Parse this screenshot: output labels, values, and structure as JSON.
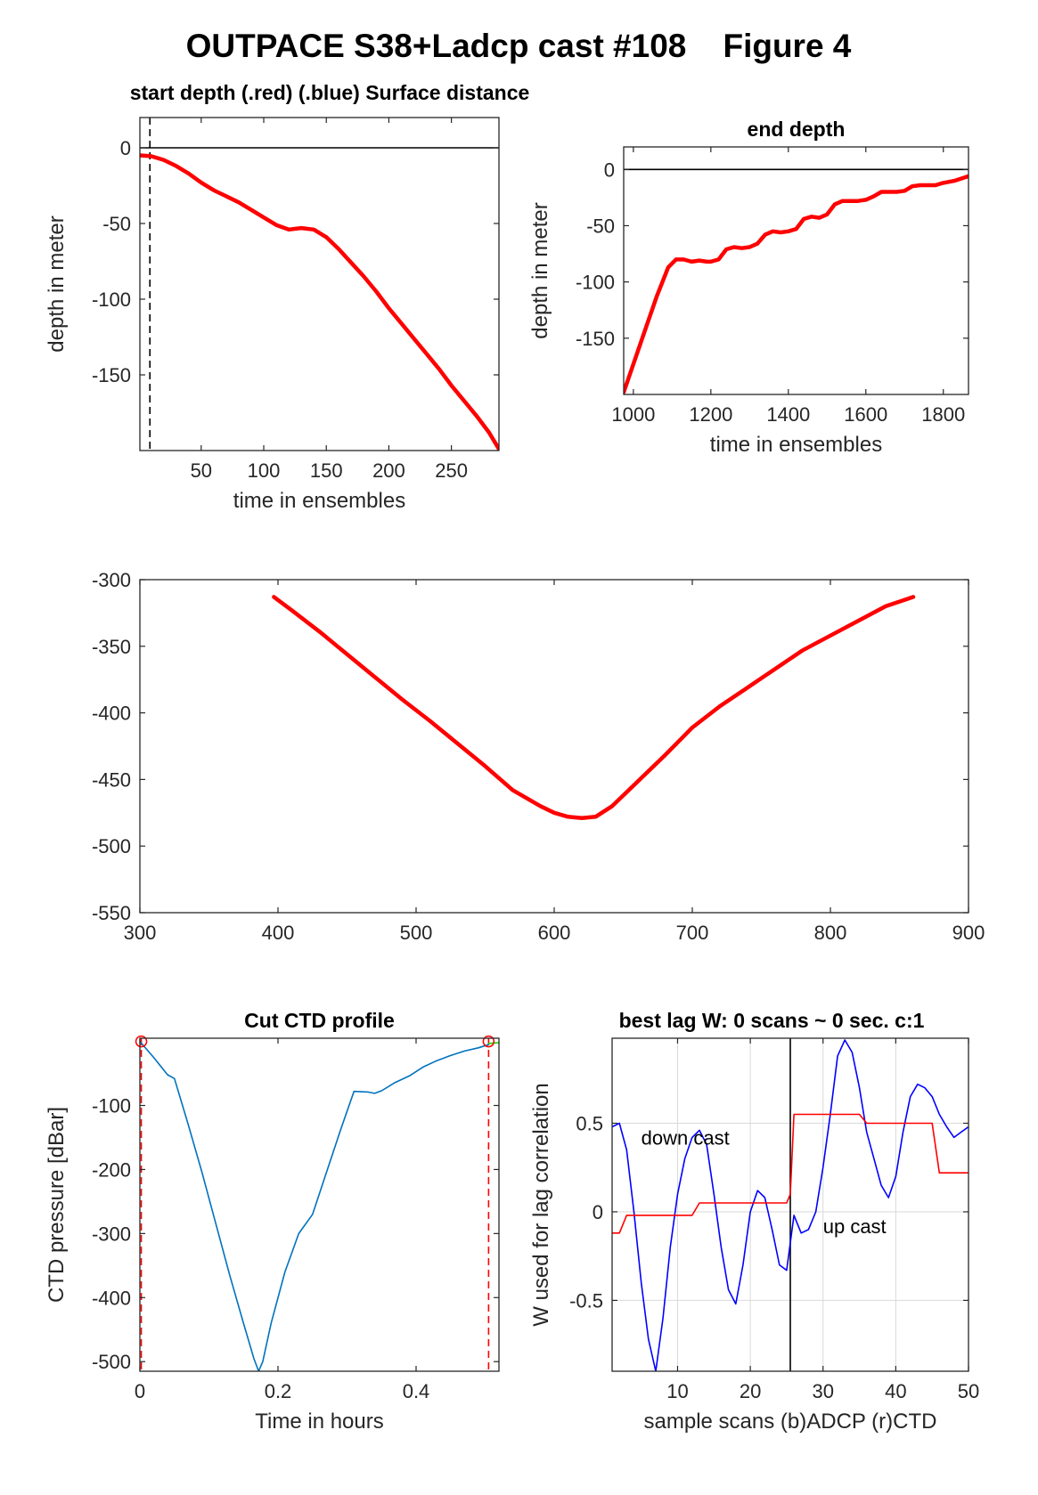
{
  "figure": {
    "title": "OUTPACE S38+Ladcp cast #108    Figure 4"
  },
  "chart_data": [
    {
      "id": "start",
      "type": "line",
      "title": "start depth (.red) (.blue) Surface distance",
      "xlabel": "time in ensembles",
      "ylabel": "depth in meter",
      "xlim": [
        1,
        288
      ],
      "ylim": [
        -200,
        20
      ],
      "xticks": [
        50,
        100,
        150,
        200,
        250
      ],
      "yticks": [
        0,
        -50,
        -100,
        -150
      ],
      "grid": false,
      "hlines": [
        {
          "y": 0,
          "style": "solid",
          "color": "#000000"
        }
      ],
      "vlines": [
        {
          "x": 9,
          "style": "dashed",
          "color": "#000000"
        }
      ],
      "series": [
        {
          "color": "#ff0000",
          "x": [
            1,
            10,
            20,
            30,
            40,
            50,
            60,
            70,
            80,
            90,
            100,
            110,
            120,
            130,
            140,
            150,
            160,
            170,
            180,
            190,
            200,
            210,
            220,
            230,
            240,
            250,
            260,
            270,
            280,
            288
          ],
          "y": [
            -5,
            -5.5,
            -8,
            -12,
            -17,
            -23,
            -28,
            -32,
            -36,
            -41,
            -46,
            -51,
            -54,
            -53,
            -54,
            -59,
            -67,
            -76,
            -85,
            -95,
            -106,
            -116,
            -126,
            -136,
            -146,
            -157,
            -167,
            -177,
            -188,
            -199
          ]
        }
      ]
    },
    {
      "id": "end",
      "type": "line",
      "title": "end depth",
      "xlabel": "time in ensembles",
      "ylabel": "depth in meter",
      "xlim": [
        975,
        1865
      ],
      "ylim": [
        -200,
        20
      ],
      "xticks": [
        1000,
        1200,
        1400,
        1600,
        1800
      ],
      "yticks": [
        0,
        -50,
        -100,
        -150
      ],
      "grid": false,
      "hlines": [
        {
          "y": 0,
          "style": "solid",
          "color": "#000000"
        }
      ],
      "vlines": [],
      "series": [
        {
          "color": "#ff0000",
          "x": [
            975,
            1000,
            1030,
            1060,
            1090,
            1110,
            1130,
            1150,
            1170,
            1190,
            1200,
            1220,
            1240,
            1260,
            1280,
            1300,
            1320,
            1340,
            1360,
            1380,
            1400,
            1420,
            1440,
            1460,
            1480,
            1500,
            1520,
            1540,
            1560,
            1580,
            1600,
            1620,
            1640,
            1660,
            1680,
            1700,
            1720,
            1740,
            1760,
            1780,
            1800,
            1830,
            1865
          ],
          "y": [
            -198,
            -173,
            -143,
            -113,
            -87,
            -80,
            -80,
            -82,
            -81,
            -82,
            -82,
            -80,
            -71,
            -69,
            -70,
            -69,
            -66,
            -58,
            -55,
            -56,
            -55,
            -53,
            -44,
            -42,
            -43,
            -40,
            -31,
            -28,
            -28,
            -28,
            -27,
            -24,
            -20,
            -20,
            -20,
            -19,
            -15,
            -14,
            -14,
            -14,
            -12,
            -10,
            -6
          ]
        }
      ]
    },
    {
      "id": "middle",
      "type": "line",
      "title": "",
      "xlabel": "",
      "ylabel": "",
      "xlim": [
        300,
        900
      ],
      "ylim": [
        -550,
        -300
      ],
      "xticks": [
        300,
        400,
        500,
        600,
        700,
        800,
        900
      ],
      "yticks": [
        -300,
        -350,
        -400,
        -450,
        -500,
        -550
      ],
      "grid": false,
      "hlines": [],
      "vlines": [],
      "series": [
        {
          "color": "#ff0000",
          "x": [
            397,
            410,
            430,
            450,
            470,
            490,
            510,
            530,
            550,
            570,
            590,
            600,
            610,
            620,
            630,
            642,
            660,
            680,
            700,
            720,
            740,
            760,
            780,
            800,
            820,
            840,
            860
          ],
          "y": [
            -313,
            -323,
            -339,
            -356,
            -373,
            -390,
            -406,
            -423,
            -440,
            -458,
            -470,
            -475,
            -478,
            -479,
            -478,
            -470,
            -452,
            -432,
            -411,
            -395,
            -381,
            -367,
            -353,
            -342,
            -331,
            -320,
            -313
          ]
        }
      ]
    },
    {
      "id": "ctd",
      "type": "line",
      "title": "Cut CTD profile",
      "xlabel": "Time in hours",
      "ylabel": "CTD pressure [dBar]",
      "xlim": [
        0,
        0.52
      ],
      "ylim": [
        -515,
        5
      ],
      "xticks": [
        0,
        0.2,
        0.4
      ],
      "yticks": [
        -100,
        -200,
        -300,
        -400,
        -500
      ],
      "grid": false,
      "hlines": [],
      "vlines": [
        {
          "x": 0.002,
          "style": "dashed",
          "color": "#ff0000"
        },
        {
          "x": 0.505,
          "style": "dashed",
          "color": "#ff0000"
        }
      ],
      "markers": [
        {
          "x": 0.002,
          "y": 0,
          "shape": "circle",
          "color": "#ff0000"
        },
        {
          "x": 0.505,
          "y": 0,
          "shape": "circle",
          "color": "#ff0000"
        }
      ],
      "series": [
        {
          "color": "#0072bd",
          "x": [
            0.0,
            0.02,
            0.04,
            0.05,
            0.07,
            0.09,
            0.11,
            0.13,
            0.15,
            0.165,
            0.172,
            0.178,
            0.19,
            0.21,
            0.23,
            0.25,
            0.27,
            0.29,
            0.31,
            0.33,
            0.34,
            0.35,
            0.37,
            0.39,
            0.41,
            0.43,
            0.45,
            0.47,
            0.49,
            0.505
          ],
          "y": [
            0,
            -25,
            -52,
            -58,
            -130,
            -205,
            -285,
            -365,
            -440,
            -495,
            -515,
            -500,
            -440,
            -360,
            -300,
            -270,
            -205,
            -140,
            -78,
            -79,
            -81,
            -77,
            -64,
            -54,
            -40,
            -30,
            -22,
            -15,
            -10,
            -5
          ]
        },
        {
          "color": "#00dd00",
          "x": [
            0.505,
            0.52
          ],
          "y": [
            -3,
            -2
          ]
        }
      ]
    },
    {
      "id": "lag",
      "type": "line",
      "title": "best lag W: 0 scans ~ 0 sec.  c:1",
      "xlabel": "sample scans (b)ADCP (r)CTD",
      "ylabel": "W used for lag correlation",
      "xlim": [
        1,
        50
      ],
      "ylim": [
        -0.9,
        0.98
      ],
      "xticks": [
        10,
        20,
        30,
        40,
        50
      ],
      "yticks": [
        0.5,
        0,
        -0.5
      ],
      "grid": true,
      "hlines": [],
      "vlines": [
        {
          "x": 25.5,
          "style": "solid",
          "color": "#000000"
        }
      ],
      "annotations": [
        {
          "text": "down cast",
          "x": 5,
          "y": 0.38
        },
        {
          "text": "up cast",
          "x": 30,
          "y": -0.12
        }
      ],
      "series": [
        {
          "color": "#0000ff",
          "x": [
            1,
            2,
            3,
            4,
            5,
            6,
            7,
            8,
            9,
            10,
            11,
            12,
            13,
            14,
            15,
            16,
            17,
            18,
            19,
            20,
            21,
            22,
            23,
            24,
            25,
            26,
            27,
            28,
            29,
            30,
            31,
            32,
            33,
            34,
            35,
            36,
            37,
            38,
            39,
            40,
            41,
            42,
            43,
            44,
            45,
            46,
            47,
            48,
            49,
            50
          ],
          "y": [
            0.48,
            0.5,
            0.35,
            0.0,
            -0.4,
            -0.72,
            -0.9,
            -0.6,
            -0.2,
            0.1,
            0.3,
            0.42,
            0.46,
            0.38,
            0.1,
            -0.2,
            -0.44,
            -0.52,
            -0.3,
            0.0,
            0.12,
            0.08,
            -0.1,
            -0.3,
            -0.33,
            -0.02,
            -0.12,
            -0.1,
            0.0,
            0.25,
            0.55,
            0.88,
            0.97,
            0.9,
            0.7,
            0.45,
            0.3,
            0.15,
            0.08,
            0.2,
            0.45,
            0.65,
            0.72,
            0.7,
            0.65,
            0.55,
            0.48,
            0.42,
            0.45,
            0.48
          ]
        },
        {
          "color": "#ff0000",
          "x": [
            1,
            2,
            3,
            4,
            12,
            13,
            25,
            25.5,
            26,
            35,
            36,
            45,
            46,
            50
          ],
          "y": [
            -0.12,
            -0.12,
            -0.02,
            -0.02,
            -0.02,
            0.05,
            0.05,
            0.1,
            0.55,
            0.55,
            0.5,
            0.5,
            0.22,
            0.22
          ]
        }
      ]
    }
  ]
}
